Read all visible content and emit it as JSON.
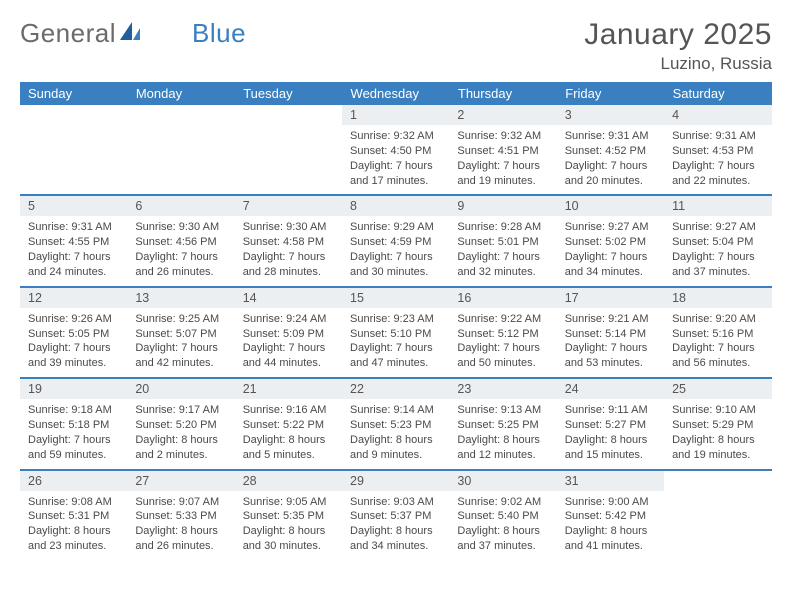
{
  "brand": {
    "part1": "General",
    "part2": "Blue"
  },
  "title": {
    "month": "January 2025",
    "location": "Luzino, Russia"
  },
  "header_bg": "#3a7fbf",
  "weekdays": [
    "Sunday",
    "Monday",
    "Tuesday",
    "Wednesday",
    "Thursday",
    "Friday",
    "Saturday"
  ],
  "weeks": [
    [
      null,
      null,
      null,
      {
        "n": "1",
        "sr": "9:32 AM",
        "ss": "4:50 PM",
        "dl": "7 hours and 17 minutes."
      },
      {
        "n": "2",
        "sr": "9:32 AM",
        "ss": "4:51 PM",
        "dl": "7 hours and 19 minutes."
      },
      {
        "n": "3",
        "sr": "9:31 AM",
        "ss": "4:52 PM",
        "dl": "7 hours and 20 minutes."
      },
      {
        "n": "4",
        "sr": "9:31 AM",
        "ss": "4:53 PM",
        "dl": "7 hours and 22 minutes."
      }
    ],
    [
      {
        "n": "5",
        "sr": "9:31 AM",
        "ss": "4:55 PM",
        "dl": "7 hours and 24 minutes."
      },
      {
        "n": "6",
        "sr": "9:30 AM",
        "ss": "4:56 PM",
        "dl": "7 hours and 26 minutes."
      },
      {
        "n": "7",
        "sr": "9:30 AM",
        "ss": "4:58 PM",
        "dl": "7 hours and 28 minutes."
      },
      {
        "n": "8",
        "sr": "9:29 AM",
        "ss": "4:59 PM",
        "dl": "7 hours and 30 minutes."
      },
      {
        "n": "9",
        "sr": "9:28 AM",
        "ss": "5:01 PM",
        "dl": "7 hours and 32 minutes."
      },
      {
        "n": "10",
        "sr": "9:27 AM",
        "ss": "5:02 PM",
        "dl": "7 hours and 34 minutes."
      },
      {
        "n": "11",
        "sr": "9:27 AM",
        "ss": "5:04 PM",
        "dl": "7 hours and 37 minutes."
      }
    ],
    [
      {
        "n": "12",
        "sr": "9:26 AM",
        "ss": "5:05 PM",
        "dl": "7 hours and 39 minutes."
      },
      {
        "n": "13",
        "sr": "9:25 AM",
        "ss": "5:07 PM",
        "dl": "7 hours and 42 minutes."
      },
      {
        "n": "14",
        "sr": "9:24 AM",
        "ss": "5:09 PM",
        "dl": "7 hours and 44 minutes."
      },
      {
        "n": "15",
        "sr": "9:23 AM",
        "ss": "5:10 PM",
        "dl": "7 hours and 47 minutes."
      },
      {
        "n": "16",
        "sr": "9:22 AM",
        "ss": "5:12 PM",
        "dl": "7 hours and 50 minutes."
      },
      {
        "n": "17",
        "sr": "9:21 AM",
        "ss": "5:14 PM",
        "dl": "7 hours and 53 minutes."
      },
      {
        "n": "18",
        "sr": "9:20 AM",
        "ss": "5:16 PM",
        "dl": "7 hours and 56 minutes."
      }
    ],
    [
      {
        "n": "19",
        "sr": "9:18 AM",
        "ss": "5:18 PM",
        "dl": "7 hours and 59 minutes."
      },
      {
        "n": "20",
        "sr": "9:17 AM",
        "ss": "5:20 PM",
        "dl": "8 hours and 2 minutes."
      },
      {
        "n": "21",
        "sr": "9:16 AM",
        "ss": "5:22 PM",
        "dl": "8 hours and 5 minutes."
      },
      {
        "n": "22",
        "sr": "9:14 AM",
        "ss": "5:23 PM",
        "dl": "8 hours and 9 minutes."
      },
      {
        "n": "23",
        "sr": "9:13 AM",
        "ss": "5:25 PM",
        "dl": "8 hours and 12 minutes."
      },
      {
        "n": "24",
        "sr": "9:11 AM",
        "ss": "5:27 PM",
        "dl": "8 hours and 15 minutes."
      },
      {
        "n": "25",
        "sr": "9:10 AM",
        "ss": "5:29 PM",
        "dl": "8 hours and 19 minutes."
      }
    ],
    [
      {
        "n": "26",
        "sr": "9:08 AM",
        "ss": "5:31 PM",
        "dl": "8 hours and 23 minutes."
      },
      {
        "n": "27",
        "sr": "9:07 AM",
        "ss": "5:33 PM",
        "dl": "8 hours and 26 minutes."
      },
      {
        "n": "28",
        "sr": "9:05 AM",
        "ss": "5:35 PM",
        "dl": "8 hours and 30 minutes."
      },
      {
        "n": "29",
        "sr": "9:03 AM",
        "ss": "5:37 PM",
        "dl": "8 hours and 34 minutes."
      },
      {
        "n": "30",
        "sr": "9:02 AM",
        "ss": "5:40 PM",
        "dl": "8 hours and 37 minutes."
      },
      {
        "n": "31",
        "sr": "9:00 AM",
        "ss": "5:42 PM",
        "dl": "8 hours and 41 minutes."
      },
      null
    ]
  ],
  "labels": {
    "sunrise": "Sunrise:",
    "sunset": "Sunset:",
    "daylight": "Daylight:"
  }
}
